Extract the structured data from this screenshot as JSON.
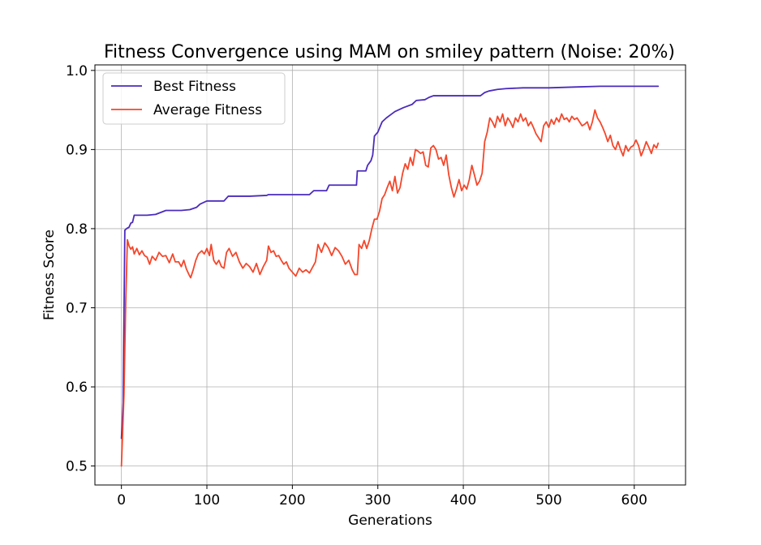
{
  "chart_data": {
    "type": "line",
    "title": "Fitness Convergence using MAM on smiley pattern (Noise: 20%)",
    "xlabel": "Generations",
    "ylabel": "Fitness Score",
    "xlim": [
      -31,
      660
    ],
    "ylim": [
      0.476,
      1.007
    ],
    "xticks": [
      0,
      100,
      200,
      300,
      400,
      500,
      600
    ],
    "xtick_labels": [
      "0",
      "100",
      "200",
      "300",
      "400",
      "500",
      "600"
    ],
    "yticks": [
      0.5,
      0.6,
      0.7,
      0.8,
      0.9,
      1.0
    ],
    "ytick_labels": [
      "0.5",
      "0.6",
      "0.7",
      "0.8",
      "0.9",
      "1.0"
    ],
    "grid": true,
    "legend_position": "top-left",
    "series": [
      {
        "name": "Best Fitness",
        "color": "#4b2bbd",
        "points": [
          [
            0,
            0.535
          ],
          [
            2,
            0.58
          ],
          [
            4,
            0.798
          ],
          [
            6,
            0.8
          ],
          [
            9,
            0.802
          ],
          [
            11,
            0.807
          ],
          [
            13,
            0.808
          ],
          [
            15,
            0.817
          ],
          [
            30,
            0.817
          ],
          [
            40,
            0.818
          ],
          [
            52,
            0.823
          ],
          [
            70,
            0.823
          ],
          [
            80,
            0.824
          ],
          [
            88,
            0.827
          ],
          [
            92,
            0.831
          ],
          [
            100,
            0.835
          ],
          [
            120,
            0.835
          ],
          [
            125,
            0.841
          ],
          [
            150,
            0.841
          ],
          [
            170,
            0.842
          ],
          [
            172,
            0.843
          ],
          [
            200,
            0.843
          ],
          [
            220,
            0.843
          ],
          [
            225,
            0.848
          ],
          [
            240,
            0.848
          ],
          [
            243,
            0.855
          ],
          [
            275,
            0.855
          ],
          [
            276,
            0.873
          ],
          [
            286,
            0.873
          ],
          [
            288,
            0.88
          ],
          [
            292,
            0.886
          ],
          [
            294,
            0.893
          ],
          [
            296,
            0.917
          ],
          [
            300,
            0.922
          ],
          [
            305,
            0.935
          ],
          [
            310,
            0.94
          ],
          [
            315,
            0.944
          ],
          [
            320,
            0.948
          ],
          [
            330,
            0.953
          ],
          [
            340,
            0.957
          ],
          [
            345,
            0.962
          ],
          [
            355,
            0.963
          ],
          [
            360,
            0.966
          ],
          [
            365,
            0.968
          ],
          [
            420,
            0.968
          ],
          [
            425,
            0.972
          ],
          [
            430,
            0.974
          ],
          [
            440,
            0.976
          ],
          [
            450,
            0.977
          ],
          [
            470,
            0.978
          ],
          [
            500,
            0.978
          ],
          [
            530,
            0.979
          ],
          [
            560,
            0.98
          ],
          [
            600,
            0.98
          ],
          [
            628,
            0.98
          ]
        ]
      },
      {
        "name": "Average Fitness",
        "color": "#f4472b",
        "points": [
          [
            0,
            0.5
          ],
          [
            3,
            0.59
          ],
          [
            5,
            0.705
          ],
          [
            7,
            0.786
          ],
          [
            9,
            0.778
          ],
          [
            11,
            0.774
          ],
          [
            13,
            0.777
          ],
          [
            15,
            0.768
          ],
          [
            18,
            0.775
          ],
          [
            21,
            0.767
          ],
          [
            24,
            0.772
          ],
          [
            27,
            0.766
          ],
          [
            30,
            0.764
          ],
          [
            33,
            0.755
          ],
          [
            36,
            0.765
          ],
          [
            40,
            0.76
          ],
          [
            44,
            0.77
          ],
          [
            48,
            0.765
          ],
          [
            52,
            0.766
          ],
          [
            56,
            0.757
          ],
          [
            60,
            0.768
          ],
          [
            63,
            0.758
          ],
          [
            67,
            0.758
          ],
          [
            70,
            0.752
          ],
          [
            73,
            0.76
          ],
          [
            76,
            0.749
          ],
          [
            79,
            0.742
          ],
          [
            81,
            0.738
          ],
          [
            84,
            0.748
          ],
          [
            87,
            0.76
          ],
          [
            90,
            0.768
          ],
          [
            94,
            0.772
          ],
          [
            97,
            0.768
          ],
          [
            100,
            0.775
          ],
          [
            103,
            0.766
          ],
          [
            105,
            0.78
          ],
          [
            108,
            0.76
          ],
          [
            111,
            0.755
          ],
          [
            114,
            0.76
          ],
          [
            117,
            0.752
          ],
          [
            120,
            0.75
          ],
          [
            123,
            0.77
          ],
          [
            126,
            0.775
          ],
          [
            130,
            0.765
          ],
          [
            134,
            0.77
          ],
          [
            138,
            0.758
          ],
          [
            142,
            0.75
          ],
          [
            146,
            0.756
          ],
          [
            150,
            0.752
          ],
          [
            154,
            0.745
          ],
          [
            158,
            0.756
          ],
          [
            162,
            0.742
          ],
          [
            166,
            0.752
          ],
          [
            170,
            0.76
          ],
          [
            172,
            0.778
          ],
          [
            175,
            0.77
          ],
          [
            178,
            0.772
          ],
          [
            181,
            0.765
          ],
          [
            184,
            0.766
          ],
          [
            187,
            0.76
          ],
          [
            190,
            0.755
          ],
          [
            193,
            0.758
          ],
          [
            196,
            0.75
          ],
          [
            200,
            0.745
          ],
          [
            204,
            0.74
          ],
          [
            208,
            0.75
          ],
          [
            212,
            0.745
          ],
          [
            216,
            0.748
          ],
          [
            220,
            0.744
          ],
          [
            224,
            0.752
          ],
          [
            227,
            0.758
          ],
          [
            230,
            0.78
          ],
          [
            234,
            0.77
          ],
          [
            238,
            0.782
          ],
          [
            242,
            0.776
          ],
          [
            246,
            0.766
          ],
          [
            250,
            0.776
          ],
          [
            254,
            0.772
          ],
          [
            258,
            0.765
          ],
          [
            262,
            0.755
          ],
          [
            266,
            0.76
          ],
          [
            270,
            0.748
          ],
          [
            273,
            0.742
          ],
          [
            276,
            0.742
          ],
          [
            278,
            0.78
          ],
          [
            281,
            0.775
          ],
          [
            284,
            0.785
          ],
          [
            287,
            0.775
          ],
          [
            290,
            0.785
          ],
          [
            293,
            0.8
          ],
          [
            296,
            0.812
          ],
          [
            299,
            0.812
          ],
          [
            302,
            0.822
          ],
          [
            305,
            0.838
          ],
          [
            308,
            0.843
          ],
          [
            311,
            0.852
          ],
          [
            314,
            0.86
          ],
          [
            317,
            0.848
          ],
          [
            320,
            0.866
          ],
          [
            323,
            0.845
          ],
          [
            326,
            0.852
          ],
          [
            329,
            0.87
          ],
          [
            332,
            0.882
          ],
          [
            335,
            0.875
          ],
          [
            338,
            0.89
          ],
          [
            341,
            0.88
          ],
          [
            344,
            0.9
          ],
          [
            347,
            0.898
          ],
          [
            350,
            0.895
          ],
          [
            353,
            0.897
          ],
          [
            356,
            0.88
          ],
          [
            359,
            0.878
          ],
          [
            362,
            0.902
          ],
          [
            365,
            0.905
          ],
          [
            368,
            0.9
          ],
          [
            371,
            0.888
          ],
          [
            374,
            0.89
          ],
          [
            377,
            0.88
          ],
          [
            380,
            0.893
          ],
          [
            383,
            0.868
          ],
          [
            386,
            0.852
          ],
          [
            389,
            0.84
          ],
          [
            392,
            0.85
          ],
          [
            395,
            0.862
          ],
          [
            398,
            0.848
          ],
          [
            401,
            0.855
          ],
          [
            404,
            0.85
          ],
          [
            407,
            0.862
          ],
          [
            410,
            0.88
          ],
          [
            413,
            0.868
          ],
          [
            416,
            0.855
          ],
          [
            419,
            0.86
          ],
          [
            422,
            0.87
          ],
          [
            425,
            0.91
          ],
          [
            428,
            0.922
          ],
          [
            431,
            0.94
          ],
          [
            434,
            0.935
          ],
          [
            437,
            0.928
          ],
          [
            440,
            0.942
          ],
          [
            443,
            0.935
          ],
          [
            446,
            0.945
          ],
          [
            449,
            0.93
          ],
          [
            452,
            0.94
          ],
          [
            455,
            0.935
          ],
          [
            458,
            0.928
          ],
          [
            461,
            0.94
          ],
          [
            464,
            0.935
          ],
          [
            467,
            0.945
          ],
          [
            470,
            0.936
          ],
          [
            473,
            0.94
          ],
          [
            476,
            0.93
          ],
          [
            479,
            0.935
          ],
          [
            482,
            0.928
          ],
          [
            485,
            0.92
          ],
          [
            488,
            0.915
          ],
          [
            491,
            0.91
          ],
          [
            494,
            0.93
          ],
          [
            497,
            0.935
          ],
          [
            500,
            0.928
          ],
          [
            503,
            0.938
          ],
          [
            506,
            0.932
          ],
          [
            509,
            0.94
          ],
          [
            512,
            0.935
          ],
          [
            515,
            0.945
          ],
          [
            518,
            0.938
          ],
          [
            521,
            0.94
          ],
          [
            524,
            0.935
          ],
          [
            527,
            0.942
          ],
          [
            530,
            0.938
          ],
          [
            533,
            0.94
          ],
          [
            536,
            0.935
          ],
          [
            539,
            0.93
          ],
          [
            542,
            0.932
          ],
          [
            545,
            0.935
          ],
          [
            548,
            0.925
          ],
          [
            551,
            0.935
          ],
          [
            554,
            0.95
          ],
          [
            557,
            0.94
          ],
          [
            560,
            0.935
          ],
          [
            563,
            0.928
          ],
          [
            566,
            0.92
          ],
          [
            569,
            0.91
          ],
          [
            572,
            0.918
          ],
          [
            575,
            0.905
          ],
          [
            578,
            0.9
          ],
          [
            581,
            0.91
          ],
          [
            584,
            0.9
          ],
          [
            587,
            0.892
          ],
          [
            590,
            0.905
          ],
          [
            593,
            0.898
          ],
          [
            596,
            0.903
          ],
          [
            599,
            0.905
          ],
          [
            602,
            0.912
          ],
          [
            605,
            0.905
          ],
          [
            608,
            0.892
          ],
          [
            611,
            0.9
          ],
          [
            614,
            0.91
          ],
          [
            617,
            0.903
          ],
          [
            620,
            0.895
          ],
          [
            623,
            0.906
          ],
          [
            626,
            0.902
          ],
          [
            628,
            0.908
          ]
        ]
      }
    ]
  }
}
